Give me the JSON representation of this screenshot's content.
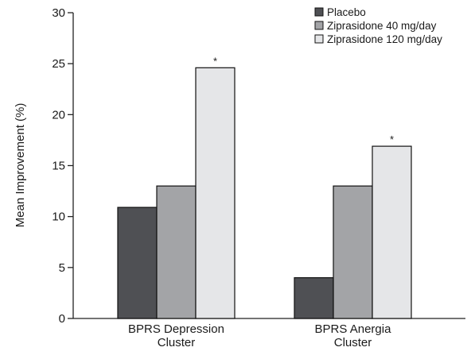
{
  "chart_data": {
    "type": "bar",
    "categories": [
      "BPRS Depression Cluster",
      "BPRS Anergia Cluster"
    ],
    "category_label_lines": [
      [
        "BPRS Depression",
        "Cluster"
      ],
      [
        "BPRS Anergia",
        "Cluster"
      ]
    ],
    "series": [
      {
        "name": "Placebo",
        "values": [
          10.9,
          4.0
        ],
        "color": "#4f5054"
      },
      {
        "name": "Ziprasidone 40 mg/day",
        "values": [
          13.0,
          13.0
        ],
        "color": "#a3a4a7"
      },
      {
        "name": "Ziprasidone 120 mg/day",
        "values": [
          24.6,
          16.9
        ],
        "color": "#e5e6e8"
      }
    ],
    "annotations": [
      {
        "category": 0,
        "series": 2,
        "text": "*"
      },
      {
        "category": 1,
        "series": 2,
        "text": "*"
      }
    ],
    "ylabel": "Mean Improvement (%)",
    "xlabel": "",
    "ylim": [
      0,
      30
    ],
    "yticks": [
      0,
      5,
      10,
      15,
      20,
      25,
      30
    ],
    "grid": false,
    "legend_position": "top-right"
  }
}
